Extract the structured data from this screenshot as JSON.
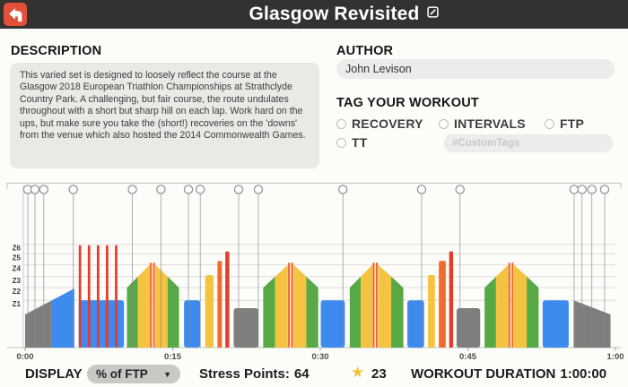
{
  "header": {
    "title": "Glasgow Revisited",
    "back_icon": "turn-left-arrow-icon",
    "edit_icon": "edit-pencil-icon"
  },
  "description": {
    "heading": "DESCRIPTION",
    "text": "This varied set is designed to loosely reflect the course at the Glasgow 2018 European Triathlon Championships at Strathclyde Country Park. A challenging, but fair course, the route undulates throughout with a short but sharp hill on each lap. Work hard on the ups, but make sure you take the (short!) recoveries on the 'downs' from the venue which also hosted the 2014 Commonwealth Games."
  },
  "author": {
    "heading": "AUTHOR",
    "value": "John Levison"
  },
  "tags": {
    "heading": "TAG YOUR WORKOUT",
    "options": [
      "RECOVERY",
      "INTERVALS",
      "FTP",
      "TT"
    ],
    "selected": "",
    "custom_placeholder": "#CustomTags"
  },
  "footer": {
    "display_label": "DISPLAY",
    "display_value": "% of FTP",
    "dropdown_caret_icon": "chevron-down-icon",
    "stress_points_label": "Stress Points:",
    "stress_points_value": "64",
    "star_icon": "star-icon",
    "star_count": "23",
    "duration_label": "WORKOUT DURATION",
    "duration_value": "1:00:00"
  },
  "chart_data": {
    "type": "workout-intervals",
    "x_axis": {
      "ticks": [
        "0:00",
        "0:15",
        "0:30",
        "0:45",
        "1:00"
      ],
      "range_min": [
        0,
        60
      ],
      "tick_step_min": 15
    },
    "y_axis": {
      "unit": "% of FTP",
      "zone_labels": [
        "Z1",
        "Z2",
        "Z3",
        "Z4",
        "Z5",
        "Z6"
      ],
      "zone_lines_pct": [
        60,
        76,
        90,
        105,
        119,
        131
      ]
    },
    "zone_colors": {
      "Z1": "#7e7e7c",
      "Z2": "#3e8bef",
      "Z3": "#57a946",
      "Z4": "#f5c342",
      "Z5": "#f16b2c",
      "Z6": "#e63a2e"
    },
    "handle_positions_min": [
      0.27,
      1.0,
      1.9,
      4.9,
      10.9,
      13.8,
      16.6,
      17.8,
      21.7,
      23.7,
      32.3,
      40.3,
      44.2,
      55.8,
      56.6,
      57.6,
      58.9
    ],
    "segments": [
      {
        "type": "ramp",
        "start": 0.0,
        "duration": 5.0,
        "power_from": 42,
        "power_to": 75
      },
      {
        "type": "intervals",
        "start": 5.45,
        "reps": 5,
        "on_duration": 0.25,
        "on_power": 130,
        "off_duration": 0.67,
        "off_power": 60
      },
      {
        "type": "ramp",
        "start": 10.35,
        "duration": 2.3,
        "power_from": 76,
        "power_to": 105
      },
      {
        "type": "steady",
        "start": 12.67,
        "duration": 0.2,
        "power": 108
      },
      {
        "type": "steady",
        "start": 12.99,
        "duration": 0.2,
        "power": 108
      },
      {
        "type": "ramp",
        "start": 13.24,
        "duration": 2.4,
        "power_from": 105,
        "power_to": 76
      },
      {
        "type": "steady",
        "start": 16.15,
        "duration": 1.65,
        "power": 60
      },
      {
        "type": "steady",
        "start": 18.3,
        "duration": 0.85,
        "power": 92
      },
      {
        "type": "steady",
        "start": 19.55,
        "duration": 0.45,
        "power": 110
      },
      {
        "type": "steady",
        "start": 20.35,
        "duration": 0.4,
        "power": 122
      },
      {
        "type": "steady",
        "start": 21.2,
        "duration": 2.5,
        "power": 50
      },
      {
        "type": "ramp",
        "start": 24.2,
        "duration": 2.5,
        "power_from": 76,
        "power_to": 105
      },
      {
        "type": "steady",
        "start": 26.72,
        "duration": 0.2,
        "power": 108
      },
      {
        "type": "steady",
        "start": 27.04,
        "duration": 0.2,
        "power": 108
      },
      {
        "type": "ramp",
        "start": 27.29,
        "duration": 2.5,
        "power_from": 105,
        "power_to": 76
      },
      {
        "type": "steady",
        "start": 30.05,
        "duration": 2.45,
        "power": 60
      },
      {
        "type": "ramp",
        "start": 33.0,
        "duration": 2.3,
        "power_from": 76,
        "power_to": 105
      },
      {
        "type": "steady",
        "start": 35.32,
        "duration": 0.2,
        "power": 108
      },
      {
        "type": "steady",
        "start": 35.64,
        "duration": 0.2,
        "power": 108
      },
      {
        "type": "ramp",
        "start": 35.89,
        "duration": 2.55,
        "power_from": 105,
        "power_to": 76
      },
      {
        "type": "steady",
        "start": 38.85,
        "duration": 1.7,
        "power": 60
      },
      {
        "type": "steady",
        "start": 40.95,
        "duration": 0.7,
        "power": 92
      },
      {
        "type": "steady",
        "start": 42.05,
        "duration": 0.7,
        "power": 110
      },
      {
        "type": "steady",
        "start": 43.1,
        "duration": 0.4,
        "power": 122
      },
      {
        "type": "steady",
        "start": 43.85,
        "duration": 2.4,
        "power": 50
      },
      {
        "type": "ramp",
        "start": 46.7,
        "duration": 2.4,
        "power_from": 76,
        "power_to": 105
      },
      {
        "type": "steady",
        "start": 49.12,
        "duration": 0.2,
        "power": 108
      },
      {
        "type": "steady",
        "start": 49.44,
        "duration": 0.2,
        "power": 108
      },
      {
        "type": "ramp",
        "start": 49.69,
        "duration": 2.5,
        "power_from": 105,
        "power_to": 76
      },
      {
        "type": "steady",
        "start": 52.6,
        "duration": 2.65,
        "power": 60
      },
      {
        "type": "ramp",
        "start": 55.75,
        "duration": 3.75,
        "power_from": 60,
        "power_to": 42
      }
    ],
    "stats": {
      "stress_points": 64,
      "star_rating": 23,
      "workout_duration": "1:00:00",
      "display_mode": "% of FTP"
    }
  }
}
